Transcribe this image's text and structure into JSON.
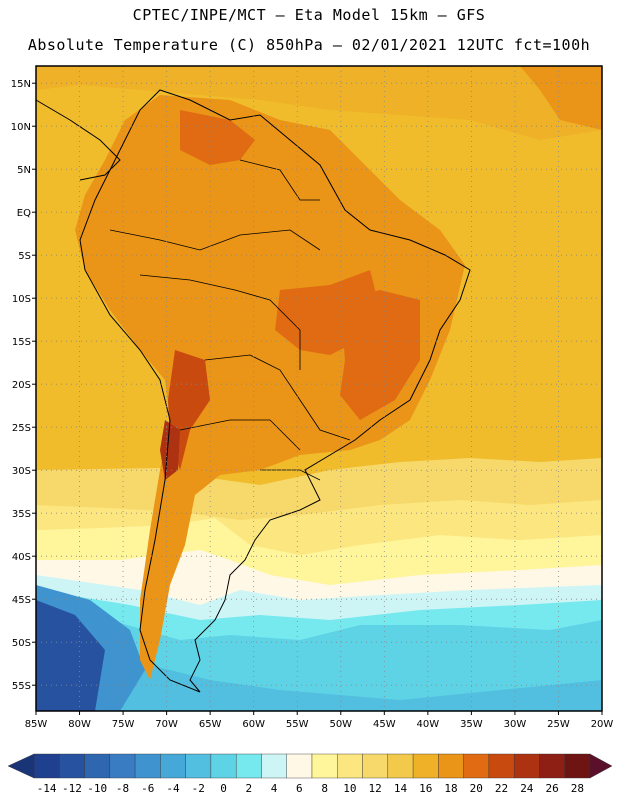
{
  "header": {
    "line1": "CPTEC/INPE/MCT –  Eta Model 15km – GFS",
    "line2": "Absolute Temperature (C) 850hPa – 02/01/2021 12UTC fct=100h"
  },
  "map": {
    "lon_range": [
      -85,
      -20
    ],
    "lat_range": [
      -58,
      17
    ],
    "lon_ticks": [
      "85W",
      "80W",
      "75W",
      "70W",
      "65W",
      "60W",
      "55W",
      "50W",
      "45W",
      "40W",
      "35W",
      "30W",
      "25W",
      "20W"
    ],
    "lat_ticks": [
      "15N",
      "10N",
      "5N",
      "EQ",
      "5S",
      "10S",
      "15S",
      "20S",
      "25S",
      "30S",
      "35S",
      "40S",
      "45S",
      "50S",
      "55S"
    ],
    "grid": "dotted"
  },
  "colorbar": {
    "labels": [
      "-14",
      "-12",
      "-10",
      "-8",
      "-6",
      "-4",
      "-2",
      "0",
      "2",
      "4",
      "6",
      "8",
      "10",
      "12",
      "14",
      "16",
      "18",
      "20",
      "22",
      "24",
      "26",
      "28"
    ],
    "colors": [
      "#1f3f8f",
      "#2652a0",
      "#2e66b0",
      "#3a7cc2",
      "#3f93cf",
      "#45a8d8",
      "#52bfe0",
      "#5fd3e6",
      "#76e9ef",
      "#cdf5f5",
      "#fff8e6",
      "#fff59a",
      "#fbe680",
      "#f7d86a",
      "#f3c94c",
      "#eeb127",
      "#ea9418",
      "#e06b12",
      "#c94a0f",
      "#ad3212",
      "#8e1f14",
      "#6e1412"
    ]
  }
}
